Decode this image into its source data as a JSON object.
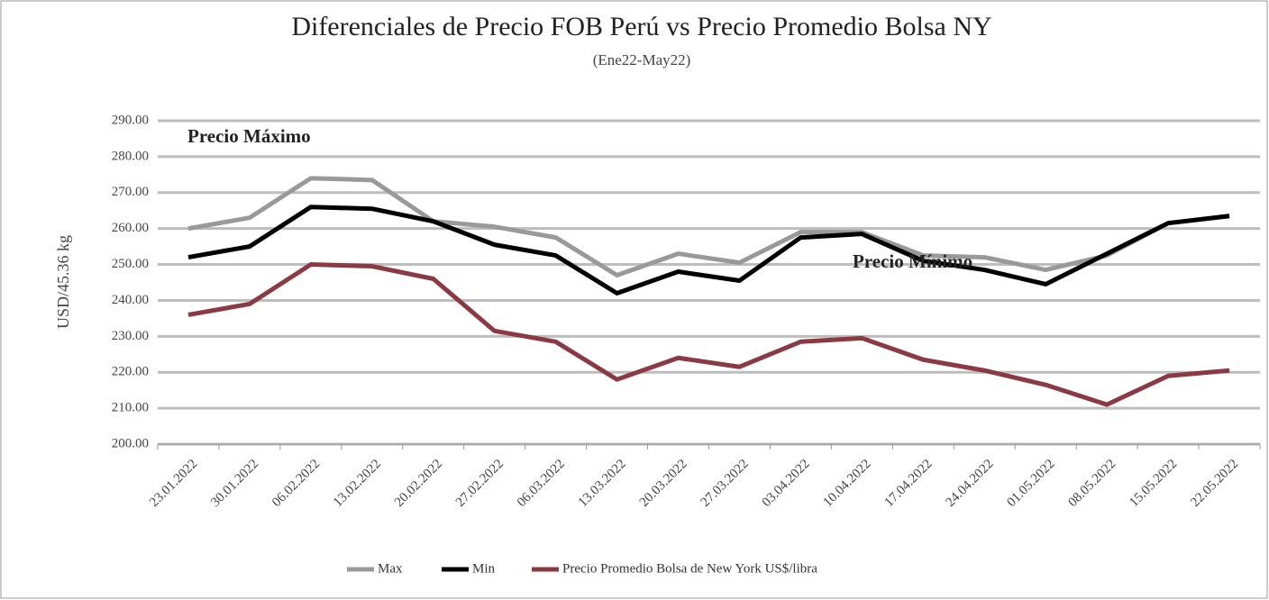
{
  "chart_data": {
    "type": "line",
    "title": "Diferenciales de Precio FOB Perú vs Precio Promedio Bolsa NY",
    "subtitle": "(Ene22-May22)",
    "y_label": "USD/45.36 kg",
    "annotations": [
      "Precio Máximo",
      "Precio Mínimo"
    ],
    "categories": [
      "23.01.2022",
      "30.01.2022",
      "06.02.2022",
      "13.02.2022",
      "20.02.2022",
      "27.02.2022",
      "06.03.2022",
      "13.03.2022",
      "20.03.2022",
      "27.03.2022",
      "03.04.2022",
      "10.04.2022",
      "17.04.2022",
      "24.04.2022",
      "01.05.2022",
      "08.05.2022",
      "15.05.2022",
      "22.05.2022"
    ],
    "series": [
      {
        "name": "Max",
        "color": "#999999",
        "values": [
          260,
          263,
          274,
          273.5,
          262,
          260.5,
          257.5,
          247,
          253,
          250.5,
          259,
          259,
          252.5,
          252,
          248.5,
          252.5,
          261.5,
          263.5
        ]
      },
      {
        "name": "Min",
        "color": "#000000",
        "values": [
          252,
          255,
          266,
          265.5,
          262,
          255.5,
          252.5,
          242,
          248,
          245.5,
          257.5,
          258.5,
          251,
          248.5,
          244.5,
          253,
          261.5,
          263.5
        ]
      },
      {
        "name": "Precio Promedio Bolsa de New York US$/libra",
        "color": "#8b3a44",
        "values": [
          236,
          239,
          250,
          249.5,
          246,
          231.5,
          228.5,
          218,
          224,
          221.5,
          228.5,
          229.5,
          223.5,
          220.5,
          216.5,
          211,
          219,
          220.5
        ]
      }
    ],
    "ylim": [
      200,
      290
    ],
    "yticks": [
      {
        "value": 200,
        "label": "200.00"
      },
      {
        "value": 210,
        "label": "210.00"
      },
      {
        "value": 220,
        "label": "220.00"
      },
      {
        "value": 230,
        "label": "230.00"
      },
      {
        "value": 240,
        "label": "240.00"
      },
      {
        "value": 250,
        "label": "250.00"
      },
      {
        "value": 260,
        "label": "260.00"
      },
      {
        "value": 270,
        "label": "270.00"
      },
      {
        "value": 280,
        "label": "280.00"
      },
      {
        "value": 290,
        "label": "290.00"
      }
    ],
    "grid": true,
    "legend": "bottom"
  }
}
